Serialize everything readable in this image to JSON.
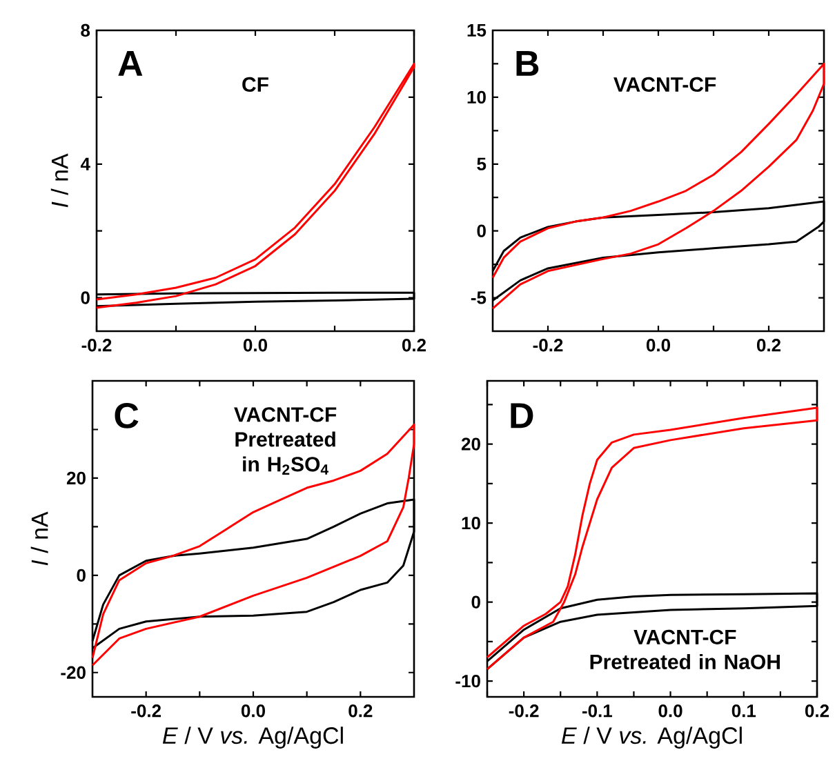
{
  "chart_data": [
    {
      "type": "line",
      "ylabel": "*I* / nA",
      "annotations": [
        "A",
        "CF"
      ],
      "xlim": [
        -0.2,
        0.2
      ],
      "ylim": [
        -1,
        8
      ],
      "xticks": [
        {
          "value": -0.2,
          "label": "-0.2"
        },
        {
          "value": -0.1,
          "label": null
        },
        {
          "value": 0,
          "label": "0.0"
        },
        {
          "value": 0.1,
          "label": null
        },
        {
          "value": 0.2,
          "label": "0.2"
        }
      ],
      "yticks": [
        0,
        {
          "value": 2,
          "label": null
        },
        4,
        {
          "value": 6,
          "label": null
        },
        8
      ],
      "series": [
        {
          "color": "#000000",
          "x": [
            -0.2,
            -0.1,
            0,
            0.1,
            0.2,
            0.2,
            0.1,
            0,
            -0.1,
            -0.2
          ],
          "values": [
            -0.25,
            -0.18,
            -0.12,
            -0.08,
            -0.03,
            0.15,
            0.15,
            0.14,
            0.13,
            0.1
          ]
        },
        {
          "color": "#ff0000",
          "x": [
            -0.2,
            -0.15,
            -0.1,
            -0.05,
            0,
            0.05,
            0.1,
            0.15,
            0.2,
            0.2,
            0.15,
            0.1,
            0.05,
            0,
            -0.05,
            -0.1,
            -0.15,
            -0.2
          ],
          "values": [
            -0.3,
            -0.15,
            0.05,
            0.4,
            0.95,
            1.9,
            3.2,
            4.9,
            6.9,
            7.0,
            5.1,
            3.4,
            2.1,
            1.15,
            0.6,
            0.3,
            0.1,
            -0.05
          ]
        }
      ]
    },
    {
      "type": "line",
      "annotations": [
        "B",
        "VACNT-CF"
      ],
      "xlim": [
        -0.3,
        0.3
      ],
      "ylim": [
        -7.5,
        15
      ],
      "xticks": [
        {
          "value": -0.2,
          "label": "-0.2"
        },
        {
          "value": -0.1,
          "label": null
        },
        {
          "value": 0,
          "label": "0.0"
        },
        {
          "value": 0.1,
          "label": null
        },
        {
          "value": 0.2,
          "label": "0.2"
        }
      ],
      "yticks": [
        -5,
        {
          "value": -2.5,
          "label": null
        },
        0,
        {
          "value": 2.5,
          "label": null
        },
        5,
        {
          "value": 7.5,
          "label": null
        },
        10,
        {
          "value": 12.5,
          "label": null
        },
        15
      ],
      "series": [
        {
          "color": "#000000",
          "x": [
            -0.3,
            -0.28,
            -0.25,
            -0.2,
            -0.15,
            -0.1,
            0,
            0.1,
            0.2,
            0.3,
            0.3,
            0.29,
            0.25,
            0.2,
            0.1,
            0,
            -0.1,
            -0.2,
            -0.25,
            -0.3
          ],
          "values": [
            -3,
            -1.5,
            -0.5,
            0.3,
            0.7,
            1.0,
            1.2,
            1.4,
            1.7,
            2.2,
            0.7,
            0.3,
            -0.8,
            -1.0,
            -1.3,
            -1.6,
            -2.0,
            -2.8,
            -3.7,
            -5.2
          ]
        },
        {
          "color": "#ff0000",
          "x": [
            -0.3,
            -0.28,
            -0.25,
            -0.2,
            -0.15,
            -0.1,
            -0.05,
            0,
            0.05,
            0.1,
            0.15,
            0.2,
            0.25,
            0.3,
            0.3,
            0.28,
            0.25,
            0.2,
            0.15,
            0.1,
            0.05,
            0,
            -0.05,
            -0.1,
            -0.2,
            -0.25,
            -0.3
          ],
          "values": [
            -3.5,
            -2,
            -0.8,
            0.2,
            0.7,
            1.0,
            1.5,
            2.2,
            3.0,
            4.2,
            5.9,
            8.0,
            10.2,
            12.5,
            11,
            9,
            6.8,
            4.8,
            3.0,
            1.5,
            0.2,
            -1.0,
            -1.7,
            -2.1,
            -3.0,
            -4.0,
            -5.8
          ]
        }
      ]
    },
    {
      "type": "line",
      "xlabel": "*E* / V *vs.* Ag/AgCl",
      "ylabel": "*I* / nA",
      "annotations": [
        "C",
        "VACNT-CF Pretreated in H$_{2}$SO$_{4}$"
      ],
      "xlim": [
        -0.3,
        0.3
      ],
      "ylim": [
        -25,
        40
      ],
      "xticks": [
        {
          "value": -0.2,
          "label": "-0.2"
        },
        {
          "value": -0.1,
          "label": null
        },
        {
          "value": 0,
          "label": "0.0"
        },
        {
          "value": 0.1,
          "label": null
        },
        {
          "value": 0.2,
          "label": "0.2"
        }
      ],
      "yticks": [
        -20,
        {
          "value": -10,
          "label": null
        },
        0,
        {
          "value": 10,
          "label": null
        },
        20,
        {
          "value": 30,
          "label": null
        }
      ],
      "series": [
        {
          "color": "#000000",
          "x": [
            -0.3,
            -0.28,
            -0.25,
            -0.2,
            -0.15,
            -0.1,
            0,
            0.1,
            0.15,
            0.2,
            0.25,
            0.3,
            0.3,
            0.28,
            0.25,
            0.2,
            0.15,
            0.1,
            0,
            -0.1,
            -0.2,
            -0.25,
            -0.3
          ],
          "values": [
            -13.5,
            -6,
            0,
            3,
            4,
            4.5,
            5.7,
            7.5,
            10,
            12.7,
            14.8,
            15.6,
            9,
            2,
            -1.5,
            -3,
            -5.5,
            -7.5,
            -8.3,
            -8.5,
            -9.5,
            -11,
            -15
          ]
        },
        {
          "color": "#ff0000",
          "x": [
            -0.3,
            -0.28,
            -0.25,
            -0.2,
            -0.15,
            -0.1,
            -0.05,
            0,
            0.05,
            0.1,
            0.15,
            0.2,
            0.25,
            0.3,
            0.3,
            0.29,
            0.28,
            0.25,
            0.2,
            0.1,
            0,
            -0.1,
            -0.2,
            -0.25,
            -0.3
          ],
          "values": [
            -17,
            -8,
            -1,
            2.5,
            4,
            6,
            9.5,
            13,
            15.5,
            18,
            19.5,
            21.5,
            25,
            31,
            27,
            20,
            14,
            7,
            4,
            -0.5,
            -4.2,
            -8.5,
            -11,
            -13,
            -18.5
          ]
        }
      ]
    },
    {
      "type": "line",
      "xlabel": "*E* / V *vs.* Ag/AgCl",
      "annotations": [
        "D",
        "VACNT-CF Pretreated in NaOH"
      ],
      "xlim": [
        -0.25,
        0.2
      ],
      "ylim": [
        -12,
        28
      ],
      "xticks": [
        {
          "value": -0.25,
          "label": null
        },
        {
          "value": -0.2,
          "label": "-0.2"
        },
        {
          "value": -0.15,
          "label": null
        },
        {
          "value": -0.1,
          "label": "-0.1"
        },
        {
          "value": -0.05,
          "label": null
        },
        {
          "value": 0,
          "label": "0.0"
        },
        {
          "value": 0.05,
          "label": null
        },
        {
          "value": 0.1,
          "label": "0.1"
        },
        {
          "value": 0.15,
          "label": null
        },
        {
          "value": 0.2,
          "label": "0.2"
        }
      ],
      "yticks": [
        -10,
        {
          "value": -5,
          "label": null
        },
        0,
        {
          "value": 5,
          "label": null
        },
        10,
        {
          "value": 15,
          "label": null
        },
        20,
        {
          "value": 25,
          "label": null
        }
      ],
      "series": [
        {
          "color": "#000000",
          "x": [
            -0.25,
            -0.2,
            -0.15,
            -0.1,
            -0.05,
            0,
            0.1,
            0.2,
            0.2,
            0.1,
            0,
            -0.1,
            -0.15,
            -0.2,
            -0.25
          ],
          "values": [
            -7.5,
            -3.5,
            -0.8,
            0.3,
            0.7,
            0.9,
            1.0,
            1.1,
            -0.5,
            -0.8,
            -1.0,
            -1.6,
            -2.5,
            -4.5,
            -8.5
          ]
        },
        {
          "color": "#ff0000",
          "x": [
            -0.25,
            -0.2,
            -0.17,
            -0.15,
            -0.14,
            -0.13,
            -0.12,
            -0.11,
            -0.1,
            -0.08,
            -0.05,
            0,
            0.1,
            0.2,
            0.2,
            0.1,
            0,
            -0.05,
            -0.08,
            -0.1,
            -0.12,
            -0.13,
            -0.145,
            -0.16,
            -0.2,
            -0.25
          ],
          "values": [
            -7,
            -3,
            -1.5,
            0,
            2,
            6,
            11,
            15,
            18,
            20.2,
            21.2,
            21.8,
            23.3,
            24.6,
            23,
            22,
            20.5,
            19.5,
            17,
            13,
            7,
            3.5,
            0,
            -2.5,
            -4.5,
            -8.5
          ]
        }
      ]
    }
  ]
}
